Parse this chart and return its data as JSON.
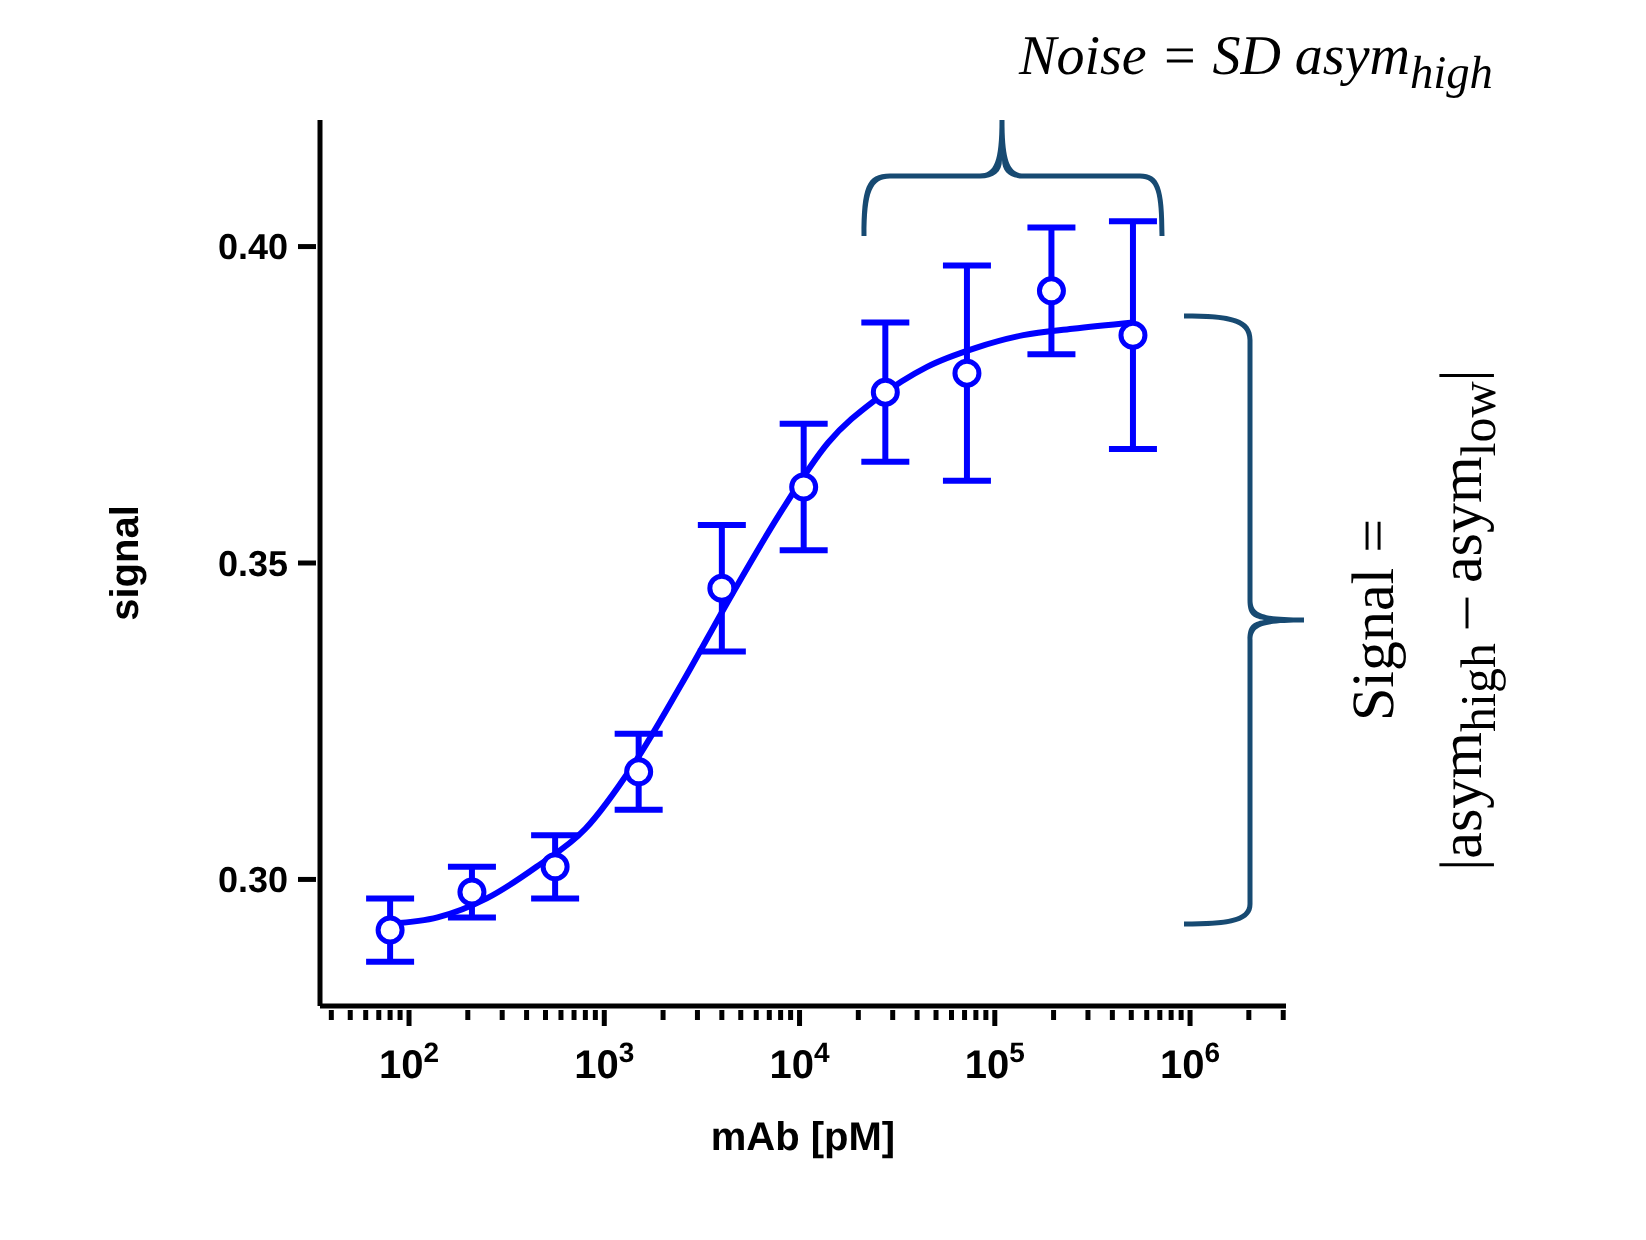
{
  "chart_data": {
    "type": "scatter",
    "xlabel": "mAb [pM]",
    "ylabel": "signal",
    "annotations": [
      "Noise = SD asym$_{high}$",
      "Signal =",
      "|asym$_{high}$ – asym$_{low}$|"
    ],
    "log": "x",
    "grid": false,
    "xlim": [
      35,
      3100000
    ],
    "xticks": [
      {
        "value": 40,
        "label": null
      },
      {
        "value": 50,
        "label": null
      },
      {
        "value": 60,
        "label": null
      },
      {
        "value": 70,
        "label": null
      },
      {
        "value": 80,
        "label": null
      },
      {
        "value": 90,
        "label": null
      },
      {
        "value": 100,
        "label": "10$^{2}$"
      },
      {
        "value": 200,
        "label": null
      },
      {
        "value": 300,
        "label": null
      },
      {
        "value": 400,
        "label": null
      },
      {
        "value": 500,
        "label": null
      },
      {
        "value": 600,
        "label": null
      },
      {
        "value": 700,
        "label": null
      },
      {
        "value": 800,
        "label": null
      },
      {
        "value": 900,
        "label": null
      },
      {
        "value": 1000,
        "label": "10$^{3}$"
      },
      {
        "value": 2000,
        "label": null
      },
      {
        "value": 3000,
        "label": null
      },
      {
        "value": 4000,
        "label": null
      },
      {
        "value": 5000,
        "label": null
      },
      {
        "value": 6000,
        "label": null
      },
      {
        "value": 7000,
        "label": null
      },
      {
        "value": 8000,
        "label": null
      },
      {
        "value": 9000,
        "label": null
      },
      {
        "value": 10000,
        "label": "10$^{4}$"
      },
      {
        "value": 20000,
        "label": null
      },
      {
        "value": 30000,
        "label": null
      },
      {
        "value": 40000,
        "label": null
      },
      {
        "value": 50000,
        "label": null
      },
      {
        "value": 60000,
        "label": null
      },
      {
        "value": 70000,
        "label": null
      },
      {
        "value": 80000,
        "label": null
      },
      {
        "value": 90000,
        "label": null
      },
      {
        "value": 100000,
        "label": "10$^{5}$"
      },
      {
        "value": 200000,
        "label": null
      },
      {
        "value": 300000,
        "label": null
      },
      {
        "value": 400000,
        "label": null
      },
      {
        "value": 500000,
        "label": null
      },
      {
        "value": 600000,
        "label": null
      },
      {
        "value": 700000,
        "label": null
      },
      {
        "value": 800000,
        "label": null
      },
      {
        "value": 900000,
        "label": null
      },
      {
        "value": 1000000,
        "label": "10$^{6}$"
      },
      {
        "value": 2000000,
        "label": null
      },
      {
        "value": 3000000,
        "label": null
      }
    ],
    "ylim": [
      0.28,
      0.42
    ],
    "yticks": [
      {
        "value": 0.3,
        "label": "0.30"
      },
      {
        "value": 0.35,
        "label": "0.35"
      },
      {
        "value": 0.4,
        "label": "0.40"
      }
    ],
    "series": [
      {
        "type": "line",
        "color": "#0000ff",
        "marker": "none",
        "x": [
          82,
          140,
          250,
          450,
          800,
          1400,
          2500,
          4500,
          8000,
          14000,
          25000,
          45000,
          80000,
          140000,
          250000,
          510000
        ],
        "values": [
          0.293,
          0.294,
          0.297,
          0.302,
          0.308,
          0.318,
          0.331,
          0.345,
          0.358,
          0.369,
          0.376,
          0.381,
          0.384,
          0.386,
          0.387,
          0.388
        ]
      },
      {
        "type": "scatter",
        "color": "#0000ff",
        "marker": "circle",
        "x": [
          80,
          210,
          560,
          1500,
          4000,
          10500,
          27500,
          72000,
          195000,
          510000
        ],
        "values": [
          0.292,
          0.298,
          0.302,
          0.317,
          0.346,
          0.362,
          0.377,
          0.38,
          0.393,
          0.386
        ],
        "errors": [
          0.005,
          0.004,
          0.005,
          0.006,
          0.01,
          0.01,
          0.011,
          0.017,
          0.01,
          0.018
        ]
      }
    ]
  }
}
